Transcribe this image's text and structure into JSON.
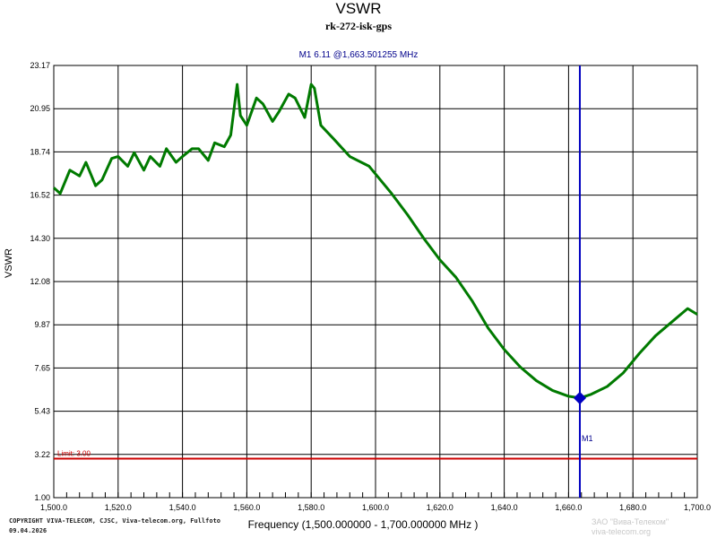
{
  "chart_data": {
    "type": "line",
    "title": "VSWR",
    "subtitle": "rk-272-isk-gps",
    "xlabel": "Frequency (1,500.000000 - 1,700.000000 MHz )",
    "ylabel": "VSWR",
    "xlim": [
      1500,
      1700
    ],
    "ylim": [
      1.0,
      23.17
    ],
    "grid": true,
    "xticks": [
      "1,500.0",
      "1,520.0",
      "1,540.0",
      "1,560.0",
      "1,580.0",
      "1,600.0",
      "1,620.0",
      "1,640.0",
      "1,660.0",
      "1,680.0",
      "1,700.0"
    ],
    "yticks": [
      "1.00",
      "3.22",
      "5.43",
      "7.65",
      "9.87",
      "12.08",
      "14.30",
      "16.52",
      "18.74",
      "20.95",
      "23.17"
    ],
    "series": [
      {
        "name": "VSWR",
        "color": "#007a00",
        "x": [
          1500,
          1502,
          1505,
          1508,
          1510,
          1513,
          1515,
          1518,
          1520,
          1523,
          1525,
          1528,
          1530,
          1533,
          1535,
          1538,
          1540,
          1543,
          1545,
          1548,
          1550,
          1553,
          1555,
          1557,
          1558,
          1560,
          1563,
          1565,
          1568,
          1570,
          1573,
          1575,
          1578,
          1580,
          1581,
          1583,
          1587,
          1592,
          1598,
          1600,
          1605,
          1610,
          1615,
          1620,
          1625,
          1630,
          1635,
          1640,
          1645,
          1650,
          1655,
          1660,
          1663.5,
          1667,
          1672,
          1677,
          1682,
          1687,
          1692,
          1697,
          1700
        ],
        "y": [
          16.9,
          16.6,
          17.8,
          17.5,
          18.2,
          17.0,
          17.3,
          18.4,
          18.5,
          18.0,
          18.7,
          17.8,
          18.5,
          18.0,
          18.9,
          18.2,
          18.5,
          18.9,
          18.9,
          18.3,
          19.2,
          19.0,
          19.6,
          22.2,
          20.6,
          20.1,
          21.5,
          21.2,
          20.3,
          20.8,
          21.7,
          21.5,
          20.5,
          22.2,
          22.0,
          20.1,
          19.4,
          18.5,
          18.0,
          17.6,
          16.6,
          15.5,
          14.3,
          13.2,
          12.3,
          11.1,
          9.7,
          8.6,
          7.7,
          7.0,
          6.5,
          6.2,
          6.11,
          6.3,
          6.7,
          7.4,
          8.4,
          9.3,
          10.0,
          10.7,
          10.4
        ]
      }
    ],
    "limit": {
      "label": "Limit: 3.00",
      "value": 3.0,
      "color": "#cc0000"
    },
    "marker": {
      "name": "M1",
      "x": 1663.501255,
      "y": 6.11,
      "readout": "M1   6.11 @1,663.501255 MHz",
      "color": "#0000c0"
    }
  },
  "footer": {
    "copyright": "COPYRIGHT VIVA-TELECOM, CJSC, Viva-telecom.org, Fullfoto",
    "date": "09.04.2026"
  },
  "watermark": {
    "line1": "ЗАО \"Вива-Телеком\"",
    "line2": "viva-telecom.org"
  }
}
